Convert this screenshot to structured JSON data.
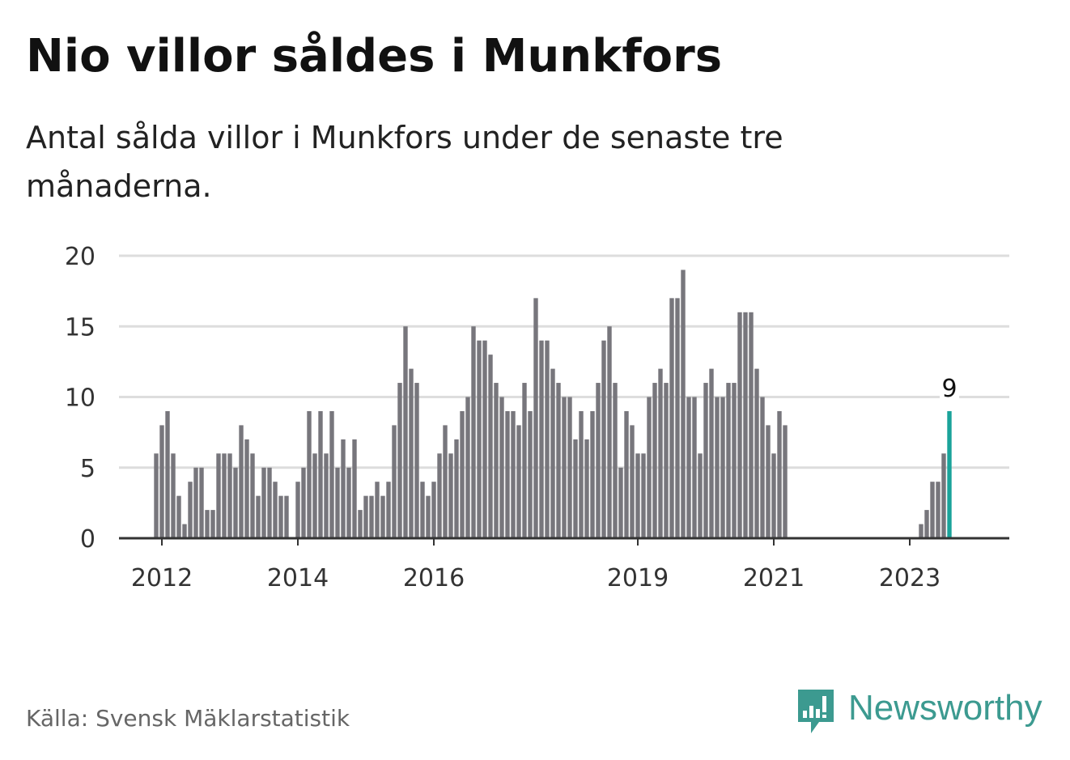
{
  "header": {
    "title": "Nio villor såldes i Munkfors",
    "subtitle": "Antal sålda villor i Munkfors under de senaste tre månaderna."
  },
  "footer": {
    "source": "Källa: Svensk Mäklarstatistik",
    "brand_name": "Newsworthy",
    "brand_icon": "bar-chart-speech-bubble-icon"
  },
  "colors": {
    "bar": "#77767c",
    "highlight": "#1aa39a",
    "grid": "#dddddd",
    "axis": "#333333",
    "brand": "#3c9a90"
  },
  "chart_data": {
    "type": "bar",
    "ylim": [
      0,
      20
    ],
    "yticks": [
      0,
      5,
      10,
      15,
      20
    ],
    "xticks": [
      {
        "label": "2012",
        "date": "2012-01"
      },
      {
        "label": "2014",
        "date": "2014-01"
      },
      {
        "label": "2016",
        "date": "2016-01"
      },
      {
        "label": "2019",
        "date": "2019-01"
      },
      {
        "label": "2021",
        "date": "2021-01"
      },
      {
        "label": "2023",
        "date": "2023-01"
      }
    ],
    "grid": true,
    "highlight_last": true,
    "last_value_label": "9",
    "months": [
      "2011-12",
      "2012-01",
      "2012-02",
      "2012-03",
      "2012-04",
      "2012-05",
      "2012-06",
      "2012-07",
      "2012-08",
      "2012-09",
      "2012-10",
      "2012-11",
      "2012-12",
      "2013-01",
      "2013-02",
      "2013-03",
      "2013-04",
      "2013-05",
      "2013-06",
      "2013-07",
      "2013-08",
      "2013-09",
      "2013-10",
      "2013-11",
      "2013-12",
      "2014-01",
      "2014-02",
      "2014-03",
      "2014-04",
      "2014-05",
      "2014-06",
      "2014-07",
      "2014-08",
      "2014-09",
      "2014-10",
      "2014-11",
      "2014-12",
      "2015-01",
      "2015-02",
      "2015-03",
      "2015-04",
      "2015-05",
      "2015-06",
      "2015-07",
      "2015-08",
      "2015-09",
      "2015-10",
      "2015-11",
      "2015-12",
      "2016-01",
      "2016-02",
      "2016-03",
      "2016-04",
      "2016-05",
      "2016-06",
      "2016-07",
      "2016-08",
      "2016-09",
      "2016-10",
      "2016-11",
      "2016-12",
      "2017-01",
      "2017-02",
      "2017-03",
      "2017-04",
      "2017-05",
      "2017-06",
      "2017-07",
      "2017-08",
      "2017-09",
      "2017-10",
      "2017-11",
      "2017-12",
      "2018-01",
      "2018-02",
      "2018-03",
      "2018-04",
      "2018-05",
      "2018-06",
      "2018-07",
      "2018-08",
      "2018-09",
      "2018-10",
      "2018-11",
      "2018-12",
      "2019-01",
      "2019-02",
      "2019-03",
      "2019-04",
      "2019-05",
      "2019-06",
      "2019-07",
      "2019-08",
      "2019-09",
      "2019-10",
      "2019-11",
      "2019-12",
      "2020-01",
      "2020-02",
      "2020-03",
      "2020-04",
      "2020-05",
      "2020-06",
      "2020-07",
      "2020-08",
      "2020-09",
      "2020-10",
      "2020-11",
      "2020-12",
      "2021-01",
      "2021-02",
      "2021-03",
      "2023-03",
      "2023-04",
      "2023-05",
      "2023-06",
      "2023-07",
      "2023-08"
    ],
    "values": [
      6,
      8,
      9,
      6,
      3,
      1,
      4,
      5,
      5,
      2,
      2,
      6,
      6,
      6,
      5,
      8,
      7,
      6,
      3,
      5,
      5,
      4,
      3,
      3,
      0,
      4,
      5,
      9,
      6,
      9,
      6,
      9,
      5,
      7,
      5,
      7,
      2,
      3,
      3,
      4,
      3,
      4,
      8,
      11,
      15,
      12,
      11,
      4,
      3,
      4,
      6,
      8,
      6,
      7,
      9,
      10,
      15,
      14,
      14,
      13,
      11,
      10,
      9,
      9,
      8,
      11,
      9,
      17,
      14,
      14,
      12,
      11,
      10,
      10,
      7,
      9,
      7,
      9,
      11,
      14,
      15,
      11,
      5,
      9,
      8,
      6,
      6,
      10,
      11,
      12,
      11,
      17,
      17,
      19,
      10,
      10,
      6,
      11,
      12,
      10,
      10,
      11,
      11,
      16,
      16,
      16,
      12,
      10,
      8,
      6,
      9,
      8,
      1,
      2,
      4,
      4,
      6,
      9
    ]
  }
}
